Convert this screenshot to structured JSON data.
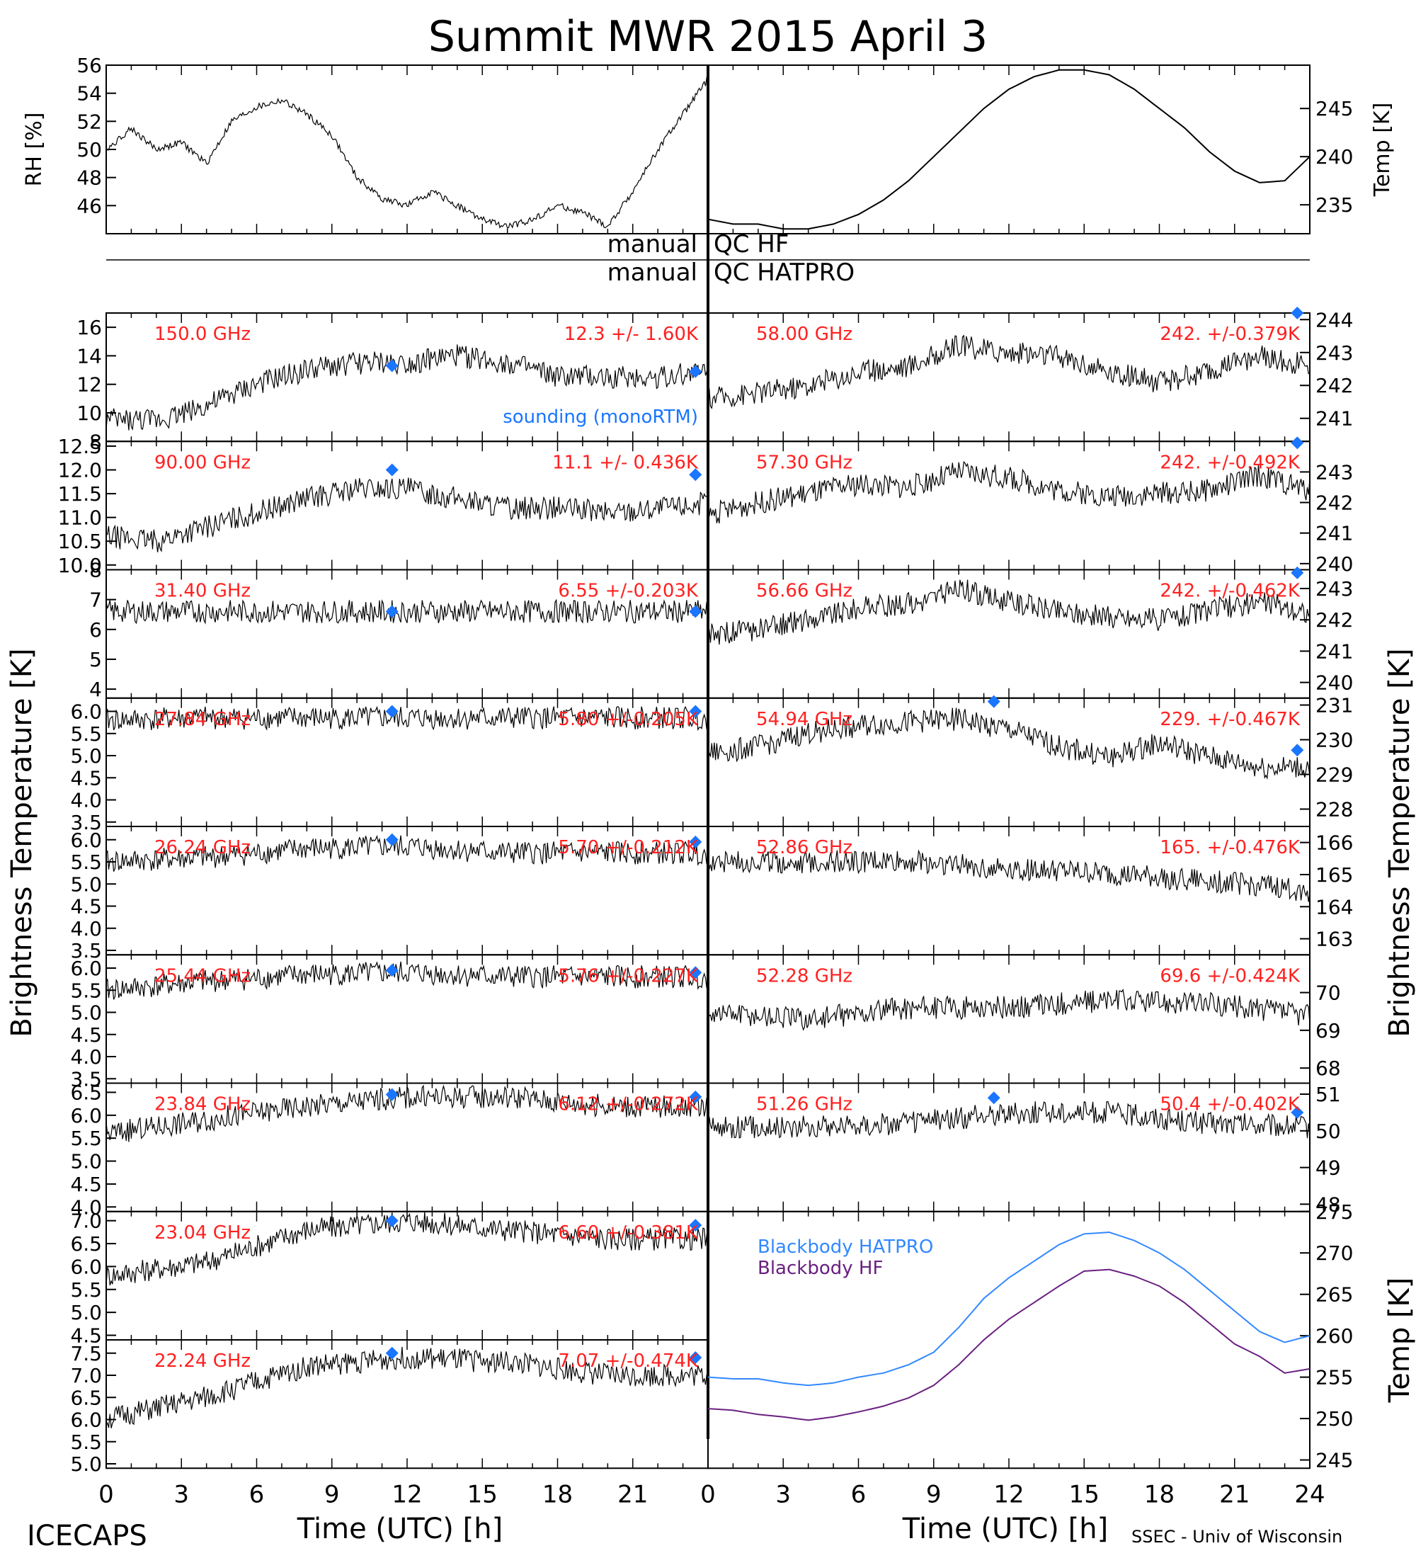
{
  "title": "Summit MWR 2015 April  3",
  "footer_left": "ICECAPS",
  "footer_right": "SSEC - Univ of Wisconsin",
  "bottom_axis_label": "Time (UTC) [h]",
  "y_axis_label_main": "Brightness Temperature [K]",
  "qc_labels": {
    "manual": "manual",
    "hf": "QC HF",
    "hatpro": "QC HATPRO"
  },
  "sounding_label": "sounding (monoRTM)",
  "colors": {
    "data": "#000000",
    "label": "#ff2020",
    "sounding": "#1a75ff",
    "hatpro_bb": "#3388ff",
    "hf_bb": "#6a2080"
  },
  "chart_data": [
    {
      "type": "line",
      "name": "rh",
      "ylabel": "RH [%]",
      "xlim": [
        0,
        24
      ],
      "ylim": [
        44,
        56
      ],
      "yticks": [
        "46",
        "48",
        "50",
        "52",
        "54",
        "56"
      ],
      "x": [
        0,
        1,
        2,
        3,
        4,
        5,
        6,
        7,
        8,
        9,
        10,
        11,
        12,
        13,
        14,
        15,
        16,
        17,
        18,
        19,
        20,
        21,
        22,
        23,
        24
      ],
      "y": [
        50,
        51.5,
        50,
        50.5,
        49,
        52,
        53,
        53.5,
        52.5,
        51,
        48,
        46.5,
        46,
        47,
        46,
        45,
        44.5,
        45,
        46,
        45.5,
        44.5,
        47,
        50,
        52.5,
        55
      ]
    },
    {
      "type": "line",
      "name": "air_temp",
      "ylabel": "Temp [K]",
      "xlim": [
        0,
        24
      ],
      "ylim": [
        232,
        249.5
      ],
      "yticks": [
        "235",
        "240",
        "245"
      ],
      "x": [
        0,
        1,
        2,
        3,
        4,
        5,
        6,
        7,
        8,
        9,
        10,
        11,
        12,
        13,
        14,
        15,
        16,
        17,
        18,
        19,
        20,
        21,
        22,
        23,
        24
      ],
      "y": [
        233.5,
        233,
        233,
        232.5,
        232.5,
        233,
        234,
        235.5,
        237.5,
        240,
        242.5,
        245,
        247,
        248.3,
        249,
        249,
        248.5,
        247,
        245,
        243,
        240.5,
        238.5,
        237.3,
        237.5,
        240
      ]
    },
    {
      "type": "line",
      "side": "left",
      "freq": "150.0 GHz",
      "stats": "12.3 +/-  1.60K",
      "ylim": [
        8,
        17
      ],
      "yticks": [
        "8",
        "10",
        "12",
        "14",
        "16"
      ],
      "sounding": [
        [
          11.4,
          13.3
        ],
        [
          23.5,
          12.9
        ]
      ],
      "x": [
        0,
        2,
        4,
        6,
        8,
        10,
        12,
        14,
        16,
        18,
        20,
        22,
        24
      ],
      "y": [
        9.5,
        9.5,
        10.5,
        12,
        13,
        13.5,
        13.5,
        14,
        13.5,
        12.5,
        12.5,
        12.5,
        13
      ]
    },
    {
      "type": "line",
      "side": "left",
      "freq": "90.00 GHz",
      "stats": "11.1 +/- 0.436K",
      "ylim": [
        9.9,
        12.6
      ],
      "yticks": [
        "10.0",
        "10.5",
        "11.0",
        "11.5",
        "12.0",
        "12.5"
      ],
      "sounding": [
        [
          11.4,
          12.0
        ],
        [
          23.5,
          11.9
        ]
      ],
      "x": [
        0,
        2,
        4,
        6,
        8,
        10,
        12,
        14,
        16,
        18,
        20,
        22,
        24
      ],
      "y": [
        10.6,
        10.5,
        10.8,
        11.1,
        11.4,
        11.6,
        11.6,
        11.4,
        11.2,
        11.2,
        11.1,
        11.2,
        11.3
      ]
    },
    {
      "type": "line",
      "side": "left",
      "freq": "31.40 GHz",
      "stats": "6.55 +/-0.203K",
      "ylim": [
        3.7,
        8
      ],
      "yticks": [
        "4",
        "5",
        "6",
        "7",
        "8"
      ],
      "sounding": [
        [
          11.4,
          6.6
        ],
        [
          23.5,
          6.6
        ]
      ],
      "x": [
        0,
        4,
        8,
        12,
        16,
        20,
        24
      ],
      "y": [
        6.6,
        6.6,
        6.6,
        6.6,
        6.6,
        6.6,
        6.6
      ]
    },
    {
      "type": "line",
      "side": "left",
      "freq": "27.84 GHz",
      "stats": "5.80 +/-0.205K",
      "ylim": [
        3.4,
        6.3
      ],
      "yticks": [
        "3.5",
        "4.0",
        "4.5",
        "5.0",
        "5.5",
        "6.0"
      ],
      "sounding": [
        [
          11.4,
          6.0
        ],
        [
          23.5,
          6.0
        ]
      ],
      "x": [
        0,
        4,
        8,
        12,
        16,
        20,
        24
      ],
      "y": [
        5.8,
        5.85,
        5.85,
        5.85,
        5.85,
        5.85,
        5.85
      ]
    },
    {
      "type": "line",
      "side": "left",
      "freq": "26.24 GHz",
      "stats": "5.70 +/-0.212K",
      "ylim": [
        3.4,
        6.3
      ],
      "yticks": [
        "3.5",
        "4.0",
        "4.5",
        "5.0",
        "5.5",
        "6.0"
      ],
      "sounding": [
        [
          11.4,
          6.0
        ],
        [
          23.5,
          5.95
        ]
      ],
      "x": [
        0,
        4,
        8,
        12,
        16,
        20,
        24
      ],
      "y": [
        5.5,
        5.6,
        5.8,
        5.85,
        5.7,
        5.7,
        5.7
      ]
    },
    {
      "type": "line",
      "side": "left",
      "freq": "25.44 GHz",
      "stats": "5.76 +/-0.227K",
      "ylim": [
        3.4,
        6.3
      ],
      "yticks": [
        "3.5",
        "4.0",
        "4.5",
        "5.0",
        "5.5",
        "6.0"
      ],
      "sounding": [
        [
          11.4,
          5.95
        ],
        [
          23.5,
          5.9
        ]
      ],
      "x": [
        0,
        4,
        8,
        12,
        16,
        20,
        24
      ],
      "y": [
        5.5,
        5.7,
        5.85,
        5.9,
        5.8,
        5.8,
        5.8
      ]
    },
    {
      "type": "line",
      "side": "left",
      "freq": "23.84 GHz",
      "stats": "6.12 +/-0.272K",
      "ylim": [
        3.9,
        6.7
      ],
      "yticks": [
        "4.0",
        "4.5",
        "5.0",
        "5.5",
        "6.0",
        "6.5"
      ],
      "sounding": [
        [
          11.4,
          6.45
        ],
        [
          23.5,
          6.4
        ]
      ],
      "x": [
        0,
        4,
        8,
        12,
        16,
        20,
        24
      ],
      "y": [
        5.6,
        5.9,
        6.2,
        6.4,
        6.4,
        6.2,
        6.2
      ]
    },
    {
      "type": "line",
      "side": "left",
      "freq": "23.04 GHz",
      "stats": "6.60 +/-0.381K",
      "ylim": [
        4.4,
        7.2
      ],
      "yticks": [
        "4.5",
        "5.0",
        "5.5",
        "6.0",
        "6.5",
        "7.0"
      ],
      "sounding": [
        [
          11.4,
          7.0
        ],
        [
          23.5,
          6.9
        ]
      ],
      "x": [
        0,
        4,
        8,
        12,
        16,
        20,
        24
      ],
      "y": [
        5.8,
        6.1,
        6.8,
        7.0,
        6.8,
        6.6,
        6.6
      ]
    },
    {
      "type": "line",
      "side": "left",
      "freq": "22.24 GHz",
      "stats": "7.07 +/-0.474K",
      "ylim": [
        4.9,
        7.8
      ],
      "yticks": [
        "5.0",
        "5.5",
        "6.0",
        "6.5",
        "7.0",
        "7.5"
      ],
      "sounding": [
        [
          11.4,
          7.5
        ],
        [
          23.5,
          7.4
        ]
      ],
      "x": [
        0,
        4,
        8,
        12,
        16,
        20,
        24
      ],
      "y": [
        6.0,
        6.5,
        7.2,
        7.4,
        7.3,
        7.0,
        7.0
      ]
    },
    {
      "type": "line",
      "side": "right",
      "freq": "58.00 GHz",
      "stats": "242. +/-0.379K",
      "ylim": [
        240.3,
        244.2
      ],
      "yticks": [
        "241",
        "242",
        "243",
        "244"
      ],
      "sounding": [
        [
          23.5,
          244.3
        ]
      ],
      "x": [
        0,
        2,
        4,
        6,
        8,
        10,
        12,
        14,
        16,
        18,
        20,
        22,
        24
      ],
      "y": [
        241.6,
        241.8,
        242,
        242.4,
        242.6,
        243.2,
        243,
        242.9,
        242.4,
        242.1,
        242.4,
        242.9,
        242.6
      ]
    },
    {
      "type": "line",
      "side": "right",
      "freq": "57.30 GHz",
      "stats": "242. +/-0.492K",
      "ylim": [
        239.8,
        244.0
      ],
      "yticks": [
        "240",
        "241",
        "242",
        "243"
      ],
      "sounding": [
        [
          23.5,
          243.95
        ]
      ],
      "x": [
        0,
        2,
        4,
        6,
        8,
        10,
        12,
        14,
        16,
        18,
        20,
        22,
        24
      ],
      "y": [
        241.6,
        242,
        242.3,
        242.6,
        242.5,
        243,
        242.8,
        242.4,
        242.2,
        242.3,
        242.4,
        242.9,
        242.4
      ]
    },
    {
      "type": "line",
      "side": "right",
      "freq": "56.66 GHz",
      "stats": "242. +/-0.462K",
      "ylim": [
        239.5,
        243.6
      ],
      "yticks": [
        "240",
        "241",
        "242",
        "243"
      ],
      "sounding": [
        [
          23.5,
          243.5
        ]
      ],
      "x": [
        0,
        2,
        4,
        6,
        8,
        10,
        12,
        14,
        16,
        18,
        20,
        22,
        24
      ],
      "y": [
        241.5,
        241.7,
        242,
        242.4,
        242.5,
        243,
        242.6,
        242.3,
        242.1,
        242,
        242.3,
        242.6,
        242.2
      ]
    },
    {
      "type": "line",
      "side": "right",
      "freq": "54.94 GHz",
      "stats": "229. +/-0.467K",
      "ylim": [
        227.5,
        231.2
      ],
      "yticks": [
        "228",
        "229",
        "230",
        "231"
      ],
      "sounding": [
        [
          11.4,
          231.1
        ],
        [
          23.5,
          229.7
        ]
      ],
      "x": [
        0,
        2,
        4,
        6,
        8,
        10,
        12,
        14,
        16,
        18,
        20,
        22,
        24
      ],
      "y": [
        229.6,
        229.8,
        230.2,
        230.4,
        230.5,
        230.6,
        230.3,
        229.8,
        229.5,
        229.9,
        229.5,
        229.2,
        229.2
      ]
    },
    {
      "type": "line",
      "side": "right",
      "freq": "52.86 GHz",
      "stats": "165. +/-0.476K",
      "ylim": [
        162.5,
        166.5
      ],
      "yticks": [
        "163",
        "164",
        "165",
        "166"
      ],
      "sounding": [],
      "x": [
        0,
        4,
        8,
        12,
        16,
        20,
        24
      ],
      "y": [
        165.4,
        165.4,
        165.4,
        165.2,
        165.0,
        164.8,
        164.5
      ]
    },
    {
      "type": "line",
      "side": "right",
      "freq": "52.28 GHz",
      "stats": "69.6 +/-0.424K",
      "ylim": [
        67.6,
        71.0
      ],
      "yticks": [
        "68",
        "69",
        "70"
      ],
      "sounding": [],
      "x": [
        0,
        4,
        8,
        12,
        16,
        20,
        24
      ],
      "y": [
        69.5,
        69.3,
        69.6,
        69.6,
        69.8,
        69.7,
        69.4
      ]
    },
    {
      "type": "line",
      "side": "right",
      "freq": "51.26 GHz",
      "stats": "50.4 +/-0.402K",
      "ylim": [
        47.8,
        51.3
      ],
      "yticks": [
        "48",
        "49",
        "50",
        "51"
      ],
      "sounding": [
        [
          11.4,
          50.9
        ],
        [
          23.5,
          50.5
        ]
      ],
      "x": [
        0,
        4,
        8,
        12,
        16,
        20,
        24
      ],
      "y": [
        50.1,
        50.1,
        50.2,
        50.5,
        50.5,
        50.2,
        50.1
      ]
    },
    {
      "type": "line",
      "name": "blackbody",
      "ylabel": "Temp [K]",
      "xlim": [
        0,
        24
      ],
      "ylim": [
        244,
        275
      ],
      "yticks": [
        "245",
        "250",
        "255",
        "260",
        "265",
        "270",
        "275"
      ],
      "series": [
        {
          "name": "Blackbody HATPRO",
          "x": [
            0,
            1,
            2,
            3,
            4,
            5,
            6,
            7,
            8,
            9,
            10,
            11,
            12,
            13,
            14,
            15,
            16,
            17,
            18,
            19,
            20,
            21,
            22,
            23,
            24
          ],
          "y": [
            255,
            254.8,
            254.8,
            254.3,
            254,
            254.3,
            255,
            255.5,
            256.5,
            258,
            261,
            264.5,
            267,
            269,
            271,
            272.3,
            272.5,
            271.5,
            270,
            268,
            265.5,
            263,
            260.5,
            259.2,
            260
          ]
        },
        {
          "name": "Blackbody HF",
          "x": [
            0,
            1,
            2,
            3,
            4,
            5,
            6,
            7,
            8,
            9,
            10,
            11,
            12,
            13,
            14,
            15,
            16,
            17,
            18,
            19,
            20,
            21,
            22,
            23,
            24
          ],
          "y": [
            251.2,
            251,
            250.5,
            250.2,
            249.8,
            250.2,
            250.8,
            251.5,
            252.5,
            254,
            256.5,
            259.5,
            262,
            264,
            266,
            267.8,
            268,
            267.2,
            266,
            264,
            261.5,
            259,
            257.5,
            255.5,
            256
          ]
        }
      ]
    }
  ],
  "x_ticks": [
    "0",
    "3",
    "6",
    "9",
    "12",
    "15",
    "18",
    "21",
    "24"
  ]
}
